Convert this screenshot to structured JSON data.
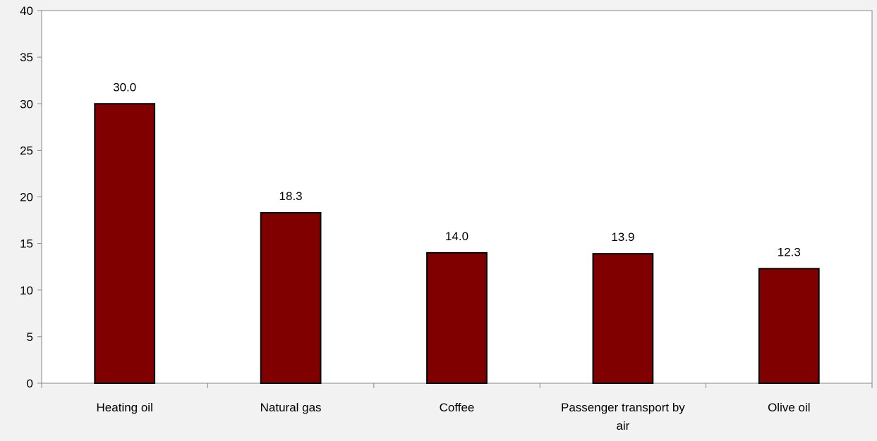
{
  "chart_data": {
    "type": "bar",
    "title": "",
    "xlabel": "",
    "ylabel": "",
    "categories": [
      "Heating oil",
      "Natural gas",
      "Coffee",
      "Passenger transport by air",
      "Olive oil"
    ],
    "values": [
      30.0,
      18.3,
      14.0,
      13.9,
      12.3
    ],
    "data_labels": [
      "30.0",
      "18.3",
      "14.0",
      "13.9",
      "12.3"
    ],
    "ylim": [
      0,
      40
    ],
    "yticks": [
      0,
      5,
      10,
      15,
      20,
      25,
      30,
      35,
      40
    ],
    "grid": false,
    "legend": "none",
    "bar_color": "#800000",
    "bar_edge_color": "#000000",
    "plot_background": "#ffffff",
    "page_background": "#f2f2f2"
  }
}
